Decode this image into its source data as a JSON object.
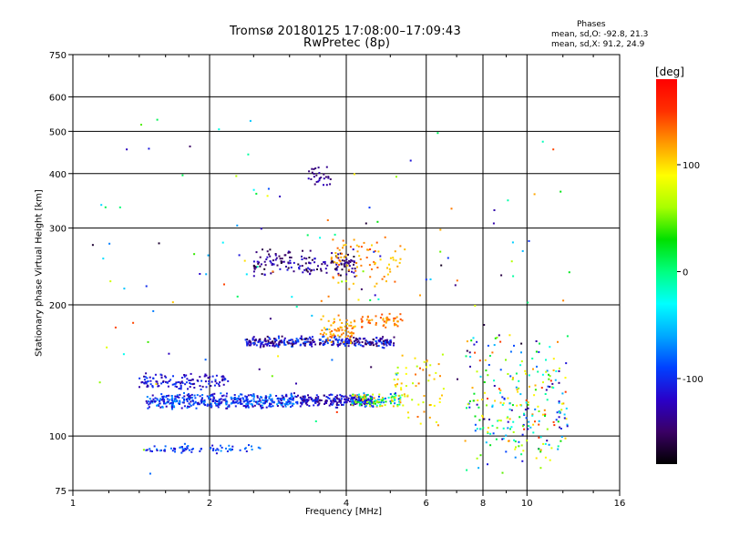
{
  "header": {
    "title_line1": "Tromsø 20180125 17:08:00–17:09:43",
    "title_line2": "RwPretec (8p)"
  },
  "phase_box": {
    "label": "Phases",
    "line_o": "mean, sd,O: -92.8, 21.3",
    "line_x": "mean, sd,X:  91.2, 24.9"
  },
  "colorbar": {
    "unit": "[deg]",
    "ticks": [
      {
        "value": 100,
        "label": "100"
      },
      {
        "value": 0,
        "label": "0"
      },
      {
        "value": -100,
        "label": "-100"
      }
    ],
    "range": [
      -180,
      180
    ],
    "stops": [
      "#000000",
      "#3a0064",
      "#2a00c8",
      "#0040ff",
      "#00a8ff",
      "#00ffff",
      "#00ff80",
      "#00e000",
      "#a8ff00",
      "#ffff00",
      "#ff9a00",
      "#ff3000",
      "#ff0000"
    ]
  },
  "chart_data": {
    "type": "scatter",
    "title": "Tromsø 20180125 17:08:00–17:09:43",
    "subtitle": "RwPretec (8p)",
    "xlabel": "Frequency [MHz]",
    "ylabel": "Stationary phase Virtual Height [km]",
    "xscale": "log2",
    "yscale": "log",
    "xlim": [
      1,
      16
    ],
    "ylim": [
      75,
      750
    ],
    "x_ticks": [
      {
        "value": 1,
        "label": "1"
      },
      {
        "value": 2,
        "label": "2"
      },
      {
        "value": 4,
        "label": "4"
      },
      {
        "value": 6,
        "label": "6"
      },
      {
        "value": 8,
        "label": "8"
      },
      {
        "value": 10,
        "label": "10"
      },
      {
        "value": 16,
        "label": "16"
      }
    ],
    "y_ticks": [
      {
        "value": 75,
        "label": "75"
      },
      {
        "value": 100,
        "label": "100"
      },
      {
        "value": 200,
        "label": "200"
      },
      {
        "value": 300,
        "label": "300"
      },
      {
        "value": 400,
        "label": "400"
      },
      {
        "value": 500,
        "label": "500"
      },
      {
        "value": 600,
        "label": "600"
      },
      {
        "value": 750,
        "label": "750"
      }
    ],
    "x_minor_ticks": [
      1.2,
      1.4,
      1.6,
      1.8,
      2.5,
      3,
      3.5,
      5,
      7,
      9,
      12,
      14
    ],
    "grid": true,
    "color_variable": "phase [deg]",
    "clusters": [
      {
        "x_range": [
          1.45,
          3.1
        ],
        "y_range": [
          115,
          126
        ],
        "phase_range": [
          -130,
          -60
        ],
        "count": 420
      },
      {
        "x_range": [
          3.1,
          4.6
        ],
        "y_range": [
          116,
          125
        ],
        "phase_range": [
          -150,
          -90
        ],
        "count": 220
      },
      {
        "x_range": [
          4.1,
          5.3
        ],
        "y_range": [
          115,
          126
        ],
        "phase_range": [
          -100,
          130
        ],
        "count": 110
      },
      {
        "x_range": [
          1.4,
          2.2
        ],
        "y_range": [
          127,
          140
        ],
        "phase_range": [
          -140,
          -90
        ],
        "count": 120
      },
      {
        "x_range": [
          2.4,
          5.1
        ],
        "y_range": [
          159,
          170
        ],
        "phase_range": [
          -160,
          -80
        ],
        "count": 330
      },
      {
        "x_range": [
          3.5,
          4.2
        ],
        "y_range": [
          160,
          192
        ],
        "phase_range": [
          100,
          140
        ],
        "count": 70
      },
      {
        "x_range": [
          4.3,
          5.4
        ],
        "y_range": [
          176,
          192
        ],
        "phase_range": [
          110,
          145
        ],
        "count": 50
      },
      {
        "x_range": [
          2.5,
          4.2
        ],
        "y_range": [
          230,
          270
        ],
        "phase_range": [
          -170,
          -110
        ],
        "count": 160
      },
      {
        "x_range": [
          3.7,
          5.4
        ],
        "y_range": [
          215,
          290
        ],
        "phase_range": [
          100,
          140
        ],
        "count": 80
      },
      {
        "x_range": [
          3.3,
          3.7
        ],
        "y_range": [
          370,
          420
        ],
        "phase_range": [
          -150,
          -120
        ],
        "count": 30
      },
      {
        "x_range": [
          1.45,
          2.6
        ],
        "y_range": [
          91,
          96
        ],
        "phase_range": [
          -120,
          -60
        ],
        "count": 70
      },
      {
        "x_range": [
          5.1,
          6.6
        ],
        "y_range": [
          105,
          160
        ],
        "phase_range": [
          60,
          140
        ],
        "count": 60
      },
      {
        "x_range": [
          7.3,
          12.3
        ],
        "y_range": [
          80,
          175
        ],
        "phase_range": [
          -150,
          160
        ],
        "count": 260
      },
      {
        "x_range": [
          1.1,
          12.5
        ],
        "y_range": [
          80,
          620
        ],
        "phase_range": [
          -170,
          150
        ],
        "count": 130
      }
    ]
  }
}
